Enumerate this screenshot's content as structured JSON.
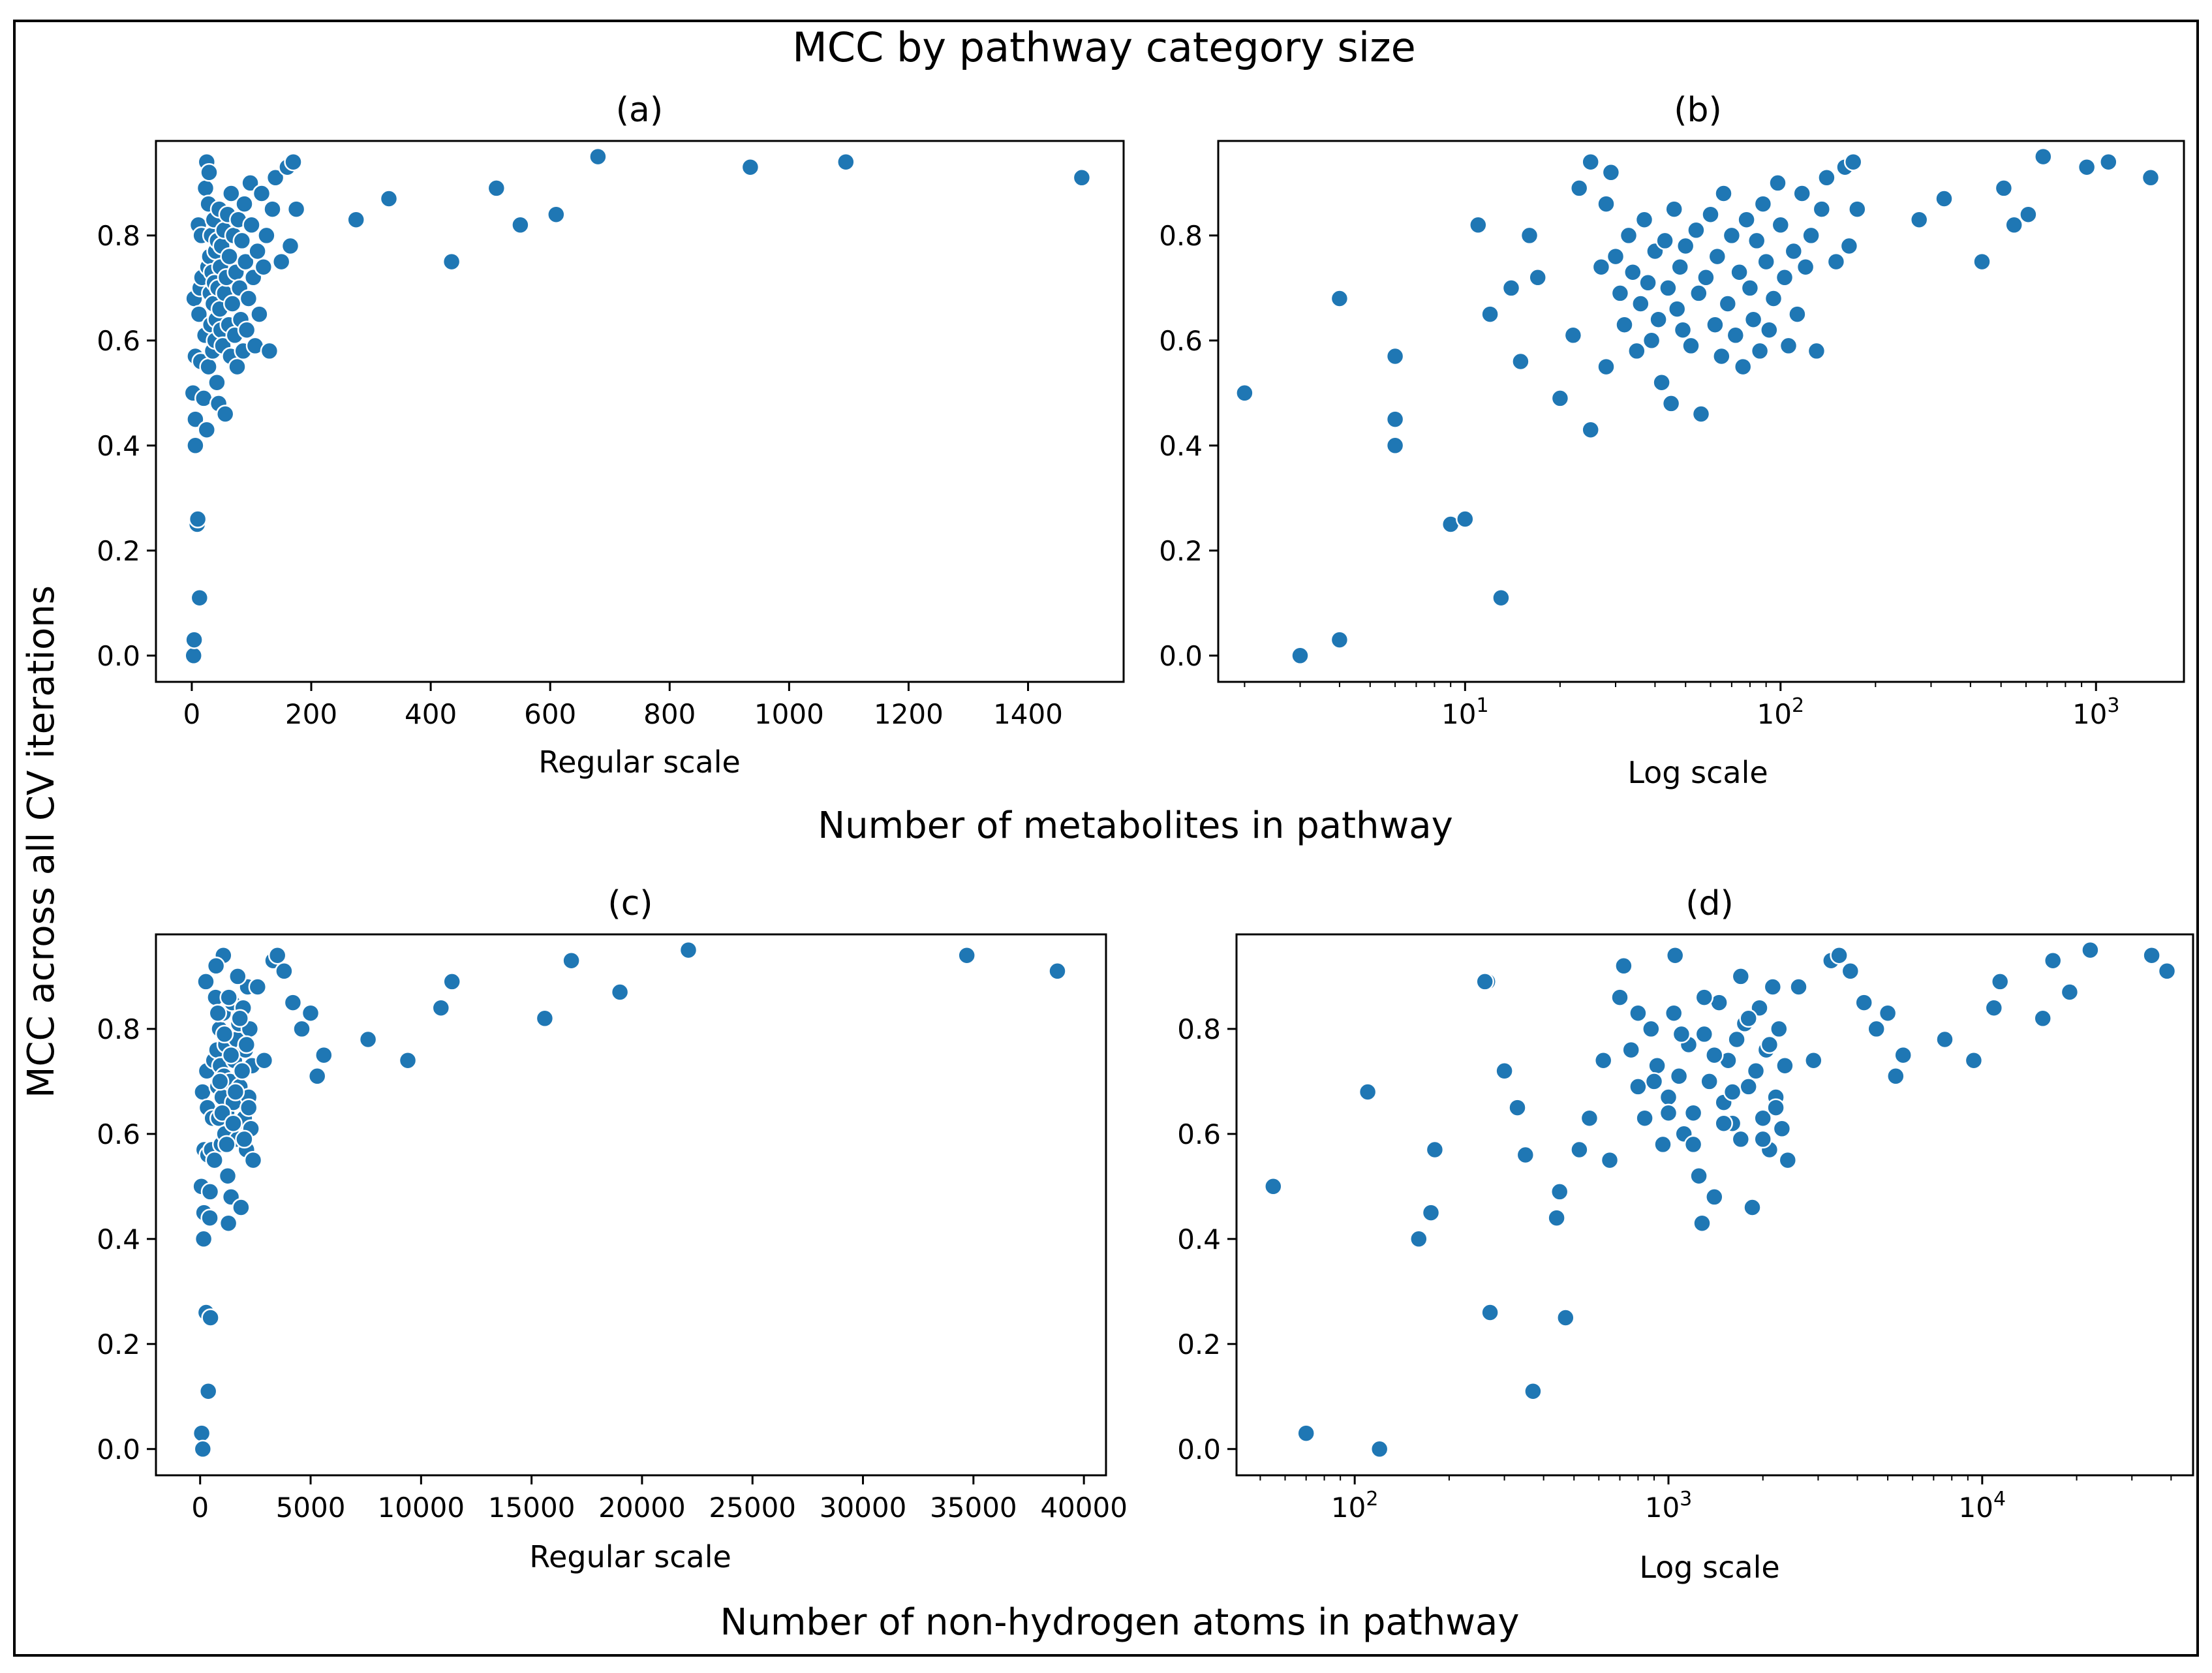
{
  "figure": {
    "title": "MCC by pathway category size",
    "shared_ylabel": "MCC across all CV iterations",
    "row1_xlabel": "Number of metabolites in pathway",
    "row2_xlabel": "Number of non-hydrogen atoms in pathway",
    "marker_color": "#1f77b4"
  },
  "chart_data": [
    {
      "type": "scatter",
      "title": "(a)",
      "xlabel": "Regular scale",
      "xscale": "linear",
      "xlim": [
        -60,
        1560
      ],
      "ylim": [
        -0.05,
        0.98
      ],
      "xticks": [
        0,
        200,
        400,
        600,
        800,
        1000,
        1200,
        1400
      ],
      "xtick_labels": [
        "0",
        "200",
        "400",
        "600",
        "800",
        "1000",
        "1200",
        "1400"
      ],
      "yticks": [
        0.0,
        0.2,
        0.4,
        0.6,
        0.8
      ],
      "ytick_labels": [
        "0.0",
        "0.2",
        "0.4",
        "0.6",
        "0.8"
      ],
      "x": [
        2,
        3,
        4,
        4,
        6,
        6,
        6,
        9,
        10,
        13,
        11,
        12,
        14,
        15,
        16,
        17,
        20,
        22,
        23,
        25,
        25,
        27,
        28,
        28,
        29,
        30,
        31,
        32,
        33,
        34,
        35,
        36,
        37,
        38,
        39,
        40,
        41,
        42,
        43,
        44,
        45,
        46,
        47,
        48,
        49,
        50,
        52,
        54,
        55,
        56,
        58,
        60,
        62,
        63,
        65,
        66,
        68,
        70,
        72,
        74,
        76,
        78,
        80,
        82,
        84,
        86,
        88,
        90,
        92,
        95,
        98,
        100,
        103,
        106,
        110,
        113,
        117,
        120,
        125,
        130,
        135,
        140,
        150,
        160,
        165,
        170,
        175,
        275,
        330,
        435,
        510,
        550,
        610,
        680,
        935,
        1095,
        1490
      ],
      "y": [
        0.5,
        0.0,
        0.03,
        0.68,
        0.57,
        0.45,
        0.4,
        0.25,
        0.26,
        0.11,
        0.82,
        0.65,
        0.7,
        0.56,
        0.8,
        0.72,
        0.49,
        0.61,
        0.89,
        0.43,
        0.94,
        0.74,
        0.55,
        0.86,
        0.92,
        0.76,
        0.69,
        0.63,
        0.8,
        0.73,
        0.58,
        0.67,
        0.83,
        0.71,
        0.6,
        0.77,
        0.64,
        0.52,
        0.79,
        0.7,
        0.48,
        0.85,
        0.66,
        0.74,
        0.62,
        0.78,
        0.59,
        0.81,
        0.69,
        0.46,
        0.72,
        0.84,
        0.63,
        0.76,
        0.57,
        0.88,
        0.67,
        0.8,
        0.61,
        0.73,
        0.55,
        0.83,
        0.7,
        0.64,
        0.79,
        0.58,
        0.86,
        0.75,
        0.62,
        0.68,
        0.9,
        0.82,
        0.72,
        0.59,
        0.77,
        0.65,
        0.88,
        0.74,
        0.8,
        0.58,
        0.85,
        0.91,
        0.75,
        0.93,
        0.78,
        0.94,
        0.85,
        0.83,
        0.87,
        0.75,
        0.89,
        0.82,
        0.84,
        0.95,
        0.93,
        0.94,
        0.91
      ]
    },
    {
      "type": "scatter",
      "title": "(b)",
      "xlabel": "Log scale",
      "xscale": "log",
      "xlim": [
        1.65,
        1900
      ],
      "ylim": [
        -0.05,
        0.98
      ],
      "xticks": [
        10,
        100,
        1000
      ],
      "xtick_labels": [
        "10",
        "10",
        "10"
      ],
      "xtick_exponents": [
        "1",
        "2",
        "3"
      ],
      "yticks": [
        0.0,
        0.2,
        0.4,
        0.6,
        0.8
      ],
      "ytick_labels": [
        "0.0",
        "0.2",
        "0.4",
        "0.6",
        "0.8"
      ],
      "x": [
        2,
        3,
        4,
        4,
        6,
        6,
        6,
        9,
        10,
        13,
        11,
        12,
        14,
        15,
        16,
        17,
        20,
        22,
        23,
        25,
        25,
        27,
        28,
        28,
        29,
        30,
        31,
        32,
        33,
        34,
        35,
        36,
        37,
        38,
        39,
        40,
        41,
        42,
        43,
        44,
        45,
        46,
        47,
        48,
        49,
        50,
        52,
        54,
        55,
        56,
        58,
        60,
        62,
        63,
        65,
        66,
        68,
        70,
        72,
        74,
        76,
        78,
        80,
        82,
        84,
        86,
        88,
        90,
        92,
        95,
        98,
        100,
        103,
        106,
        110,
        113,
        117,
        120,
        125,
        130,
        135,
        140,
        150,
        160,
        165,
        170,
        175,
        275,
        330,
        435,
        510,
        550,
        610,
        680,
        935,
        1095,
        1490
      ],
      "y": [
        0.5,
        0.0,
        0.03,
        0.68,
        0.57,
        0.45,
        0.4,
        0.25,
        0.26,
        0.11,
        0.82,
        0.65,
        0.7,
        0.56,
        0.8,
        0.72,
        0.49,
        0.61,
        0.89,
        0.43,
        0.94,
        0.74,
        0.55,
        0.86,
        0.92,
        0.76,
        0.69,
        0.63,
        0.8,
        0.73,
        0.58,
        0.67,
        0.83,
        0.71,
        0.6,
        0.77,
        0.64,
        0.52,
        0.79,
        0.7,
        0.48,
        0.85,
        0.66,
        0.74,
        0.62,
        0.78,
        0.59,
        0.81,
        0.69,
        0.46,
        0.72,
        0.84,
        0.63,
        0.76,
        0.57,
        0.88,
        0.67,
        0.8,
        0.61,
        0.73,
        0.55,
        0.83,
        0.7,
        0.64,
        0.79,
        0.58,
        0.86,
        0.75,
        0.62,
        0.68,
        0.9,
        0.82,
        0.72,
        0.59,
        0.77,
        0.65,
        0.88,
        0.74,
        0.8,
        0.58,
        0.85,
        0.91,
        0.75,
        0.93,
        0.78,
        0.94,
        0.85,
        0.83,
        0.87,
        0.75,
        0.89,
        0.82,
        0.84,
        0.95,
        0.93,
        0.94,
        0.91
      ]
    },
    {
      "type": "scatter",
      "title": "(c)",
      "xlabel": "Regular scale",
      "xscale": "linear",
      "xlim": [
        -2000,
        41000
      ],
      "ylim": [
        -0.05,
        0.98
      ],
      "xticks": [
        0,
        5000,
        10000,
        15000,
        20000,
        25000,
        30000,
        35000,
        40000
      ],
      "xtick_labels": [
        "0",
        "5000",
        "10000",
        "15000",
        "20000",
        "25000",
        "30000",
        "35000",
        "40000"
      ],
      "yticks": [
        0.0,
        0.2,
        0.4,
        0.6,
        0.8
      ],
      "ytick_labels": [
        "0.0",
        "0.2",
        "0.4",
        "0.6",
        "0.8"
      ],
      "x": [
        55,
        70,
        120,
        110,
        160,
        175,
        180,
        265,
        300,
        370,
        330,
        270,
        440,
        350,
        450,
        470,
        560,
        520,
        260,
        1280,
        1050,
        620,
        650,
        700,
        720,
        760,
        800,
        840,
        880,
        920,
        960,
        1000,
        1040,
        1080,
        1120,
        1160,
        1200,
        1250,
        1300,
        1350,
        1400,
        1450,
        1500,
        1550,
        1600,
        1650,
        1700,
        1750,
        1800,
        1850,
        1900,
        1950,
        2000,
        2050,
        2100,
        2150,
        2200,
        2250,
        2300,
        2350,
        2400,
        800,
        900,
        1000,
        1100,
        1200,
        1300,
        1400,
        1500,
        1600,
        1700,
        1800,
        1900,
        2000,
        2100,
        2200,
        2600,
        2900,
        3300,
        3500,
        3800,
        4200,
        4600,
        5000,
        5300,
        5600,
        7600,
        9400,
        10900,
        11400,
        15600,
        16800,
        19000,
        22100,
        34700,
        38800
      ],
      "y": [
        0.5,
        0.03,
        0.0,
        0.68,
        0.4,
        0.45,
        0.57,
        0.89,
        0.72,
        0.11,
        0.65,
        0.26,
        0.44,
        0.56,
        0.49,
        0.25,
        0.63,
        0.57,
        0.89,
        0.43,
        0.94,
        0.74,
        0.55,
        0.86,
        0.92,
        0.76,
        0.69,
        0.63,
        0.8,
        0.73,
        0.58,
        0.67,
        0.83,
        0.71,
        0.6,
        0.77,
        0.64,
        0.52,
        0.79,
        0.7,
        0.48,
        0.85,
        0.66,
        0.74,
        0.62,
        0.78,
        0.59,
        0.81,
        0.69,
        0.46,
        0.72,
        0.84,
        0.63,
        0.76,
        0.57,
        0.88,
        0.67,
        0.8,
        0.61,
        0.73,
        0.55,
        0.83,
        0.7,
        0.64,
        0.79,
        0.58,
        0.86,
        0.75,
        0.62,
        0.68,
        0.9,
        0.82,
        0.72,
        0.59,
        0.77,
        0.65,
        0.88,
        0.74,
        0.93,
        0.94,
        0.91,
        0.85,
        0.8,
        0.83,
        0.71,
        0.75,
        0.78,
        0.74,
        0.84,
        0.89,
        0.82,
        0.93,
        0.87,
        0.95,
        0.94,
        0.91
      ]
    },
    {
      "type": "scatter",
      "title": "(d)",
      "xlabel": "Log scale",
      "xscale": "log",
      "xlim": [
        42,
        47000
      ],
      "ylim": [
        -0.05,
        0.98
      ],
      "xticks": [
        100,
        1000,
        10000
      ],
      "xtick_labels": [
        "10",
        "10",
        "10"
      ],
      "xtick_exponents": [
        "2",
        "3",
        "4"
      ],
      "yticks": [
        0.0,
        0.2,
        0.4,
        0.6,
        0.8
      ],
      "ytick_labels": [
        "0.0",
        "0.2",
        "0.4",
        "0.6",
        "0.8"
      ],
      "x": [
        55,
        70,
        120,
        110,
        160,
        175,
        180,
        265,
        300,
        370,
        330,
        270,
        440,
        350,
        450,
        470,
        560,
        520,
        260,
        1280,
        1050,
        620,
        650,
        700,
        720,
        760,
        800,
        840,
        880,
        920,
        960,
        1000,
        1040,
        1080,
        1120,
        1160,
        1200,
        1250,
        1300,
        1350,
        1400,
        1450,
        1500,
        1550,
        1600,
        1650,
        1700,
        1750,
        1800,
        1850,
        1900,
        1950,
        2000,
        2050,
        2100,
        2150,
        2200,
        2250,
        2300,
        2350,
        2400,
        800,
        900,
        1000,
        1100,
        1200,
        1300,
        1400,
        1500,
        1600,
        1700,
        1800,
        1900,
        2000,
        2100,
        2200,
        2600,
        2900,
        3300,
        3500,
        3800,
        4200,
        4600,
        5000,
        5300,
        5600,
        7600,
        9400,
        10900,
        11400,
        15600,
        16800,
        19000,
        22100,
        34700,
        38800
      ],
      "y": [
        0.5,
        0.03,
        0.0,
        0.68,
        0.4,
        0.45,
        0.57,
        0.89,
        0.72,
        0.11,
        0.65,
        0.26,
        0.44,
        0.56,
        0.49,
        0.25,
        0.63,
        0.57,
        0.89,
        0.43,
        0.94,
        0.74,
        0.55,
        0.86,
        0.92,
        0.76,
        0.69,
        0.63,
        0.8,
        0.73,
        0.58,
        0.67,
        0.83,
        0.71,
        0.6,
        0.77,
        0.64,
        0.52,
        0.79,
        0.7,
        0.48,
        0.85,
        0.66,
        0.74,
        0.62,
        0.78,
        0.59,
        0.81,
        0.69,
        0.46,
        0.72,
        0.84,
        0.63,
        0.76,
        0.57,
        0.88,
        0.67,
        0.8,
        0.61,
        0.73,
        0.55,
        0.83,
        0.7,
        0.64,
        0.79,
        0.58,
        0.86,
        0.75,
        0.62,
        0.68,
        0.9,
        0.82,
        0.72,
        0.59,
        0.77,
        0.65,
        0.88,
        0.74,
        0.93,
        0.94,
        0.91,
        0.85,
        0.8,
        0.83,
        0.71,
        0.75,
        0.78,
        0.74,
        0.84,
        0.89,
        0.82,
        0.93,
        0.87,
        0.95,
        0.94,
        0.91
      ]
    }
  ]
}
